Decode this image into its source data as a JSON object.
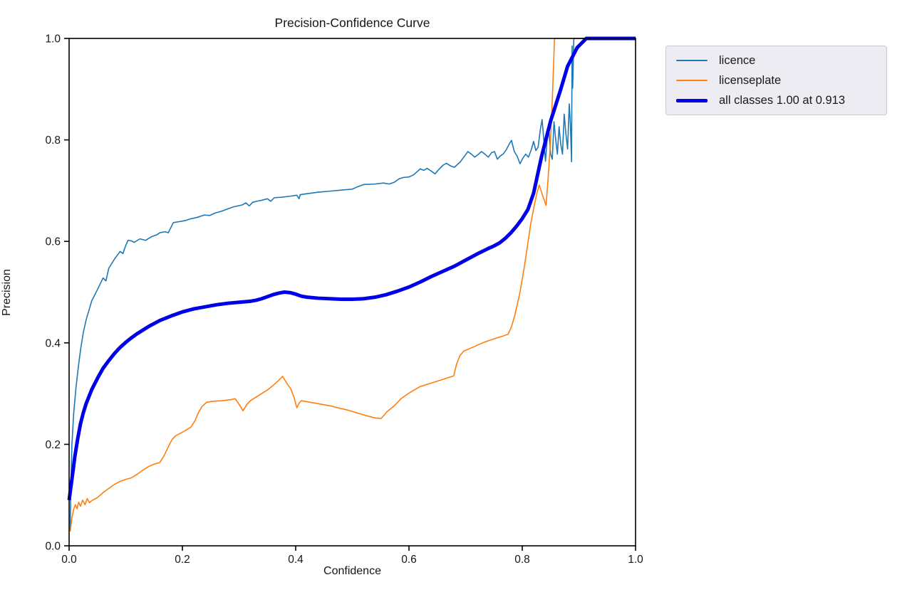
{
  "figure": {
    "title": "Precision-Confidence Curve",
    "xlabel": "Confidence",
    "ylabel": "Precision"
  },
  "chart_data": {
    "type": "line",
    "title": "Precision-Confidence Curve",
    "xlabel": "Confidence",
    "ylabel": "Precision",
    "xlim": [
      0.0,
      1.0
    ],
    "ylim": [
      0.0,
      1.0
    ],
    "x_ticks": [
      "0.0",
      "0.2",
      "0.4",
      "0.6",
      "0.8",
      "1.0"
    ],
    "y_ticks": [
      "0.0",
      "0.2",
      "0.4",
      "0.6",
      "0.8",
      "1.0"
    ],
    "grid": false,
    "legend_position": "outside-upper-right",
    "axis_color": "#000000",
    "series": [
      {
        "name": "licence",
        "color": "#1f77b4",
        "width": 1.6,
        "points": [
          [
            0.002,
            0.03
          ],
          [
            0.003,
            0.12
          ],
          [
            0.005,
            0.2
          ],
          [
            0.008,
            0.26
          ],
          [
            0.012,
            0.31
          ],
          [
            0.016,
            0.35
          ],
          [
            0.02,
            0.385
          ],
          [
            0.025,
            0.42
          ],
          [
            0.03,
            0.445
          ],
          [
            0.04,
            0.483
          ],
          [
            0.05,
            0.505
          ],
          [
            0.06,
            0.528
          ],
          [
            0.065,
            0.522
          ],
          [
            0.07,
            0.547
          ],
          [
            0.08,
            0.565
          ],
          [
            0.09,
            0.58
          ],
          [
            0.095,
            0.576
          ],
          [
            0.1,
            0.592
          ],
          [
            0.104,
            0.602
          ],
          [
            0.11,
            0.601
          ],
          [
            0.115,
            0.598
          ],
          [
            0.125,
            0.605
          ],
          [
            0.135,
            0.602
          ],
          [
            0.145,
            0.609
          ],
          [
            0.155,
            0.613
          ],
          [
            0.16,
            0.617
          ],
          [
            0.17,
            0.619
          ],
          [
            0.175,
            0.617
          ],
          [
            0.184,
            0.637
          ],
          [
            0.195,
            0.639
          ],
          [
            0.205,
            0.641
          ],
          [
            0.213,
            0.644
          ],
          [
            0.225,
            0.647
          ],
          [
            0.239,
            0.652
          ],
          [
            0.248,
            0.651
          ],
          [
            0.258,
            0.656
          ],
          [
            0.268,
            0.659
          ],
          [
            0.28,
            0.664
          ],
          [
            0.29,
            0.668
          ],
          [
            0.306,
            0.672
          ],
          [
            0.312,
            0.676
          ],
          [
            0.318,
            0.67
          ],
          [
            0.324,
            0.677
          ],
          [
            0.331,
            0.679
          ],
          [
            0.34,
            0.681
          ],
          [
            0.35,
            0.684
          ],
          [
            0.356,
            0.679
          ],
          [
            0.362,
            0.686
          ],
          [
            0.375,
            0.687
          ],
          [
            0.39,
            0.689
          ],
          [
            0.402,
            0.691
          ],
          [
            0.406,
            0.684
          ],
          [
            0.408,
            0.692
          ],
          [
            0.42,
            0.694
          ],
          [
            0.44,
            0.697
          ],
          [
            0.46,
            0.699
          ],
          [
            0.48,
            0.701
          ],
          [
            0.5,
            0.703
          ],
          [
            0.51,
            0.708
          ],
          [
            0.52,
            0.712
          ],
          [
            0.54,
            0.713
          ],
          [
            0.555,
            0.715
          ],
          [
            0.565,
            0.713
          ],
          [
            0.575,
            0.717
          ],
          [
            0.582,
            0.723
          ],
          [
            0.59,
            0.726
          ],
          [
            0.6,
            0.727
          ],
          [
            0.608,
            0.731
          ],
          [
            0.615,
            0.738
          ],
          [
            0.62,
            0.743
          ],
          [
            0.626,
            0.74
          ],
          [
            0.632,
            0.744
          ],
          [
            0.64,
            0.738
          ],
          [
            0.646,
            0.733
          ],
          [
            0.652,
            0.741
          ],
          [
            0.66,
            0.75
          ],
          [
            0.666,
            0.754
          ],
          [
            0.673,
            0.749
          ],
          [
            0.68,
            0.746
          ],
          [
            0.69,
            0.756
          ],
          [
            0.698,
            0.768
          ],
          [
            0.704,
            0.777
          ],
          [
            0.71,
            0.772
          ],
          [
            0.716,
            0.766
          ],
          [
            0.722,
            0.771
          ],
          [
            0.728,
            0.777
          ],
          [
            0.734,
            0.772
          ],
          [
            0.74,
            0.766
          ],
          [
            0.746,
            0.775
          ],
          [
            0.751,
            0.777
          ],
          [
            0.756,
            0.762
          ],
          [
            0.761,
            0.768
          ],
          [
            0.767,
            0.773
          ],
          [
            0.772,
            0.781
          ],
          [
            0.777,
            0.792
          ],
          [
            0.781,
            0.799
          ],
          [
            0.786,
            0.777
          ],
          [
            0.791,
            0.768
          ],
          [
            0.796,
            0.753
          ],
          [
            0.801,
            0.764
          ],
          [
            0.806,
            0.772
          ],
          [
            0.811,
            0.766
          ],
          [
            0.816,
            0.781
          ],
          [
            0.82,
            0.797
          ],
          [
            0.824,
            0.779
          ],
          [
            0.828,
            0.786
          ],
          [
            0.832,
            0.821
          ],
          [
            0.835,
            0.84
          ],
          [
            0.838,
            0.801
          ],
          [
            0.841,
            0.758
          ],
          [
            0.844,
            0.801
          ],
          [
            0.847,
            0.821
          ],
          [
            0.85,
            0.772
          ],
          [
            0.853,
            0.762
          ],
          [
            0.856,
            0.836
          ],
          [
            0.859,
            0.801
          ],
          [
            0.862,
            0.772
          ],
          [
            0.865,
            0.826
          ],
          [
            0.868,
            0.791
          ],
          [
            0.871,
            0.772
          ],
          [
            0.874,
            0.851
          ],
          [
            0.877,
            0.812
          ],
          [
            0.88,
            0.782
          ],
          [
            0.883,
            0.871
          ],
          [
            0.885,
            0.831
          ],
          [
            0.887,
            0.757
          ],
          [
            0.888,
            0.985
          ],
          [
            0.889,
            0.902
          ],
          [
            0.891,
            1.0
          ],
          [
            1.0,
            1.0
          ]
        ]
      },
      {
        "name": "licenseplate",
        "color": "#ff7f0e",
        "width": 1.6,
        "points": [
          [
            0.002,
            0.028
          ],
          [
            0.005,
            0.055
          ],
          [
            0.008,
            0.072
          ],
          [
            0.011,
            0.081
          ],
          [
            0.014,
            0.073
          ],
          [
            0.017,
            0.086
          ],
          [
            0.02,
            0.078
          ],
          [
            0.024,
            0.09
          ],
          [
            0.028,
            0.081
          ],
          [
            0.032,
            0.093
          ],
          [
            0.036,
            0.085
          ],
          [
            0.04,
            0.089
          ],
          [
            0.05,
            0.095
          ],
          [
            0.06,
            0.105
          ],
          [
            0.07,
            0.113
          ],
          [
            0.08,
            0.121
          ],
          [
            0.09,
            0.127
          ],
          [
            0.1,
            0.131
          ],
          [
            0.11,
            0.134
          ],
          [
            0.12,
            0.141
          ],
          [
            0.13,
            0.149
          ],
          [
            0.14,
            0.156
          ],
          [
            0.15,
            0.161
          ],
          [
            0.16,
            0.164
          ],
          [
            0.168,
            0.178
          ],
          [
            0.175,
            0.195
          ],
          [
            0.182,
            0.21
          ],
          [
            0.188,
            0.217
          ],
          [
            0.195,
            0.221
          ],
          [
            0.205,
            0.227
          ],
          [
            0.215,
            0.234
          ],
          [
            0.222,
            0.246
          ],
          [
            0.228,
            0.262
          ],
          [
            0.235,
            0.275
          ],
          [
            0.243,
            0.283
          ],
          [
            0.255,
            0.285
          ],
          [
            0.27,
            0.286
          ],
          [
            0.285,
            0.288
          ],
          [
            0.293,
            0.29
          ],
          [
            0.3,
            0.279
          ],
          [
            0.307,
            0.266
          ],
          [
            0.314,
            0.279
          ],
          [
            0.32,
            0.286
          ],
          [
            0.33,
            0.293
          ],
          [
            0.34,
            0.3
          ],
          [
            0.35,
            0.307
          ],
          [
            0.36,
            0.316
          ],
          [
            0.37,
            0.326
          ],
          [
            0.377,
            0.334
          ],
          [
            0.385,
            0.319
          ],
          [
            0.391,
            0.31
          ],
          [
            0.397,
            0.293
          ],
          [
            0.402,
            0.272
          ],
          [
            0.406,
            0.281
          ],
          [
            0.41,
            0.286
          ],
          [
            0.43,
            0.282
          ],
          [
            0.46,
            0.276
          ],
          [
            0.49,
            0.268
          ],
          [
            0.52,
            0.258
          ],
          [
            0.54,
            0.252
          ],
          [
            0.551,
            0.251
          ],
          [
            0.561,
            0.264
          ],
          [
            0.575,
            0.277
          ],
          [
            0.586,
            0.29
          ],
          [
            0.6,
            0.301
          ],
          [
            0.62,
            0.314
          ],
          [
            0.64,
            0.321
          ],
          [
            0.66,
            0.328
          ],
          [
            0.679,
            0.335
          ],
          [
            0.684,
            0.358
          ],
          [
            0.69,
            0.375
          ],
          [
            0.697,
            0.384
          ],
          [
            0.71,
            0.39
          ],
          [
            0.73,
            0.4
          ],
          [
            0.75,
            0.408
          ],
          [
            0.765,
            0.413
          ],
          [
            0.775,
            0.417
          ],
          [
            0.781,
            0.432
          ],
          [
            0.787,
            0.455
          ],
          [
            0.796,
            0.5
          ],
          [
            0.803,
            0.545
          ],
          [
            0.809,
            0.59
          ],
          [
            0.815,
            0.635
          ],
          [
            0.821,
            0.67
          ],
          [
            0.826,
            0.696
          ],
          [
            0.83,
            0.711
          ],
          [
            0.836,
            0.69
          ],
          [
            0.842,
            0.671
          ],
          [
            0.846,
            0.73
          ],
          [
            0.85,
            0.8
          ],
          [
            0.853,
            0.878
          ],
          [
            0.855,
            0.94
          ],
          [
            0.857,
            1.0
          ],
          [
            1.0,
            1.0
          ]
        ]
      },
      {
        "name": "all classes 1.00 at 0.913",
        "color": "#0000e8",
        "width": 5,
        "points": [
          [
            0.0,
            0.09
          ],
          [
            0.003,
            0.115
          ],
          [
            0.006,
            0.14
          ],
          [
            0.01,
            0.175
          ],
          [
            0.015,
            0.21
          ],
          [
            0.02,
            0.24
          ],
          [
            0.025,
            0.262
          ],
          [
            0.03,
            0.28
          ],
          [
            0.04,
            0.308
          ],
          [
            0.05,
            0.33
          ],
          [
            0.06,
            0.35
          ],
          [
            0.07,
            0.365
          ],
          [
            0.08,
            0.379
          ],
          [
            0.09,
            0.391
          ],
          [
            0.1,
            0.401
          ],
          [
            0.11,
            0.41
          ],
          [
            0.12,
            0.418
          ],
          [
            0.13,
            0.425
          ],
          [
            0.14,
            0.432
          ],
          [
            0.15,
            0.438
          ],
          [
            0.16,
            0.444
          ],
          [
            0.18,
            0.453
          ],
          [
            0.2,
            0.461
          ],
          [
            0.22,
            0.467
          ],
          [
            0.24,
            0.471
          ],
          [
            0.26,
            0.475
          ],
          [
            0.28,
            0.478
          ],
          [
            0.3,
            0.48
          ],
          [
            0.32,
            0.482
          ],
          [
            0.33,
            0.484
          ],
          [
            0.34,
            0.487
          ],
          [
            0.35,
            0.491
          ],
          [
            0.36,
            0.495
          ],
          [
            0.37,
            0.498
          ],
          [
            0.38,
            0.5
          ],
          [
            0.39,
            0.499
          ],
          [
            0.4,
            0.496
          ],
          [
            0.41,
            0.492
          ],
          [
            0.42,
            0.49
          ],
          [
            0.44,
            0.488
          ],
          [
            0.46,
            0.487
          ],
          [
            0.48,
            0.486
          ],
          [
            0.5,
            0.486
          ],
          [
            0.52,
            0.487
          ],
          [
            0.54,
            0.49
          ],
          [
            0.56,
            0.495
          ],
          [
            0.58,
            0.502
          ],
          [
            0.6,
            0.51
          ],
          [
            0.62,
            0.52
          ],
          [
            0.64,
            0.531
          ],
          [
            0.66,
            0.541
          ],
          [
            0.68,
            0.551
          ],
          [
            0.7,
            0.563
          ],
          [
            0.72,
            0.575
          ],
          [
            0.74,
            0.586
          ],
          [
            0.75,
            0.591
          ],
          [
            0.76,
            0.597
          ],
          [
            0.77,
            0.606
          ],
          [
            0.78,
            0.617
          ],
          [
            0.79,
            0.63
          ],
          [
            0.8,
            0.645
          ],
          [
            0.81,
            0.663
          ],
          [
            0.82,
            0.695
          ],
          [
            0.834,
            0.767
          ],
          [
            0.85,
            0.837
          ],
          [
            0.868,
            0.9
          ],
          [
            0.88,
            0.945
          ],
          [
            0.897,
            0.982
          ],
          [
            0.913,
            1.0
          ],
          [
            1.0,
            1.0
          ]
        ]
      }
    ]
  }
}
